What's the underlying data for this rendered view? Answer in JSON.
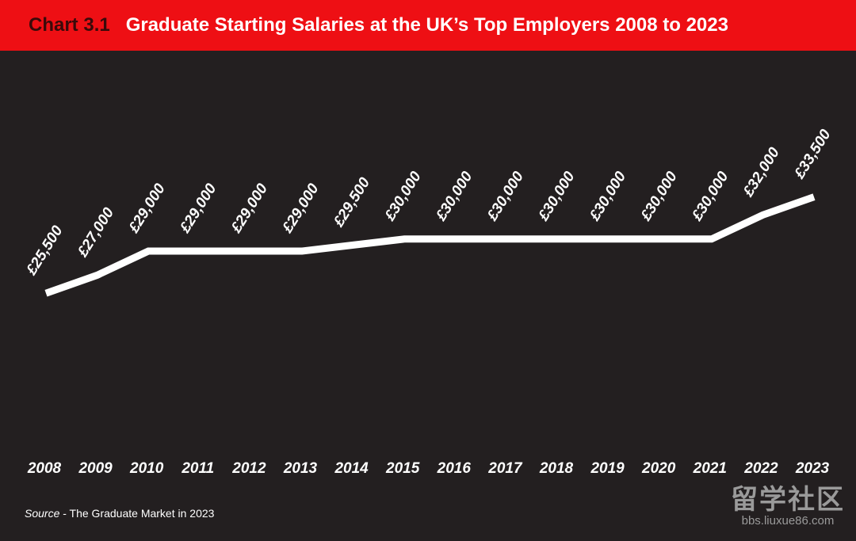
{
  "header": {
    "chart_number": "Chart 3.1",
    "title": "Graduate Starting Salaries at the UK’s Top Employers 2008 to 2023",
    "background_color": "#ee0f14"
  },
  "source": {
    "label": "Source",
    "text": " - The Graduate Market in 2023"
  },
  "watermark": {
    "text": "留学社区",
    "url": "bbs.liuxue86.com"
  },
  "chart_data": {
    "type": "line",
    "title": "Graduate Starting Salaries at the UK’s Top Employers 2008 to 2023",
    "x": [
      "2008",
      "2009",
      "2010",
      "2011",
      "2012",
      "2013",
      "2014",
      "2015",
      "2016",
      "2017",
      "2018",
      "2019",
      "2020",
      "2021",
      "2022",
      "2023"
    ],
    "values": [
      25500,
      27000,
      29000,
      29000,
      29000,
      29000,
      29500,
      30000,
      30000,
      30000,
      30000,
      30000,
      30000,
      30000,
      32000,
      33500
    ],
    "data_labels": [
      "£25,500",
      "£27,000",
      "£29,000",
      "£29,000",
      "£29,000",
      "£29,000",
      "£29,500",
      "£30,000",
      "£30,000",
      "£30,000",
      "£30,000",
      "£30,000",
      "£30,000",
      "£30,000",
      "£32,000",
      "£33,500"
    ],
    "xlabel": "",
    "ylabel": "",
    "grid": false,
    "legend": "none",
    "line_color": "#ffffff",
    "background_color": "#231f20"
  }
}
